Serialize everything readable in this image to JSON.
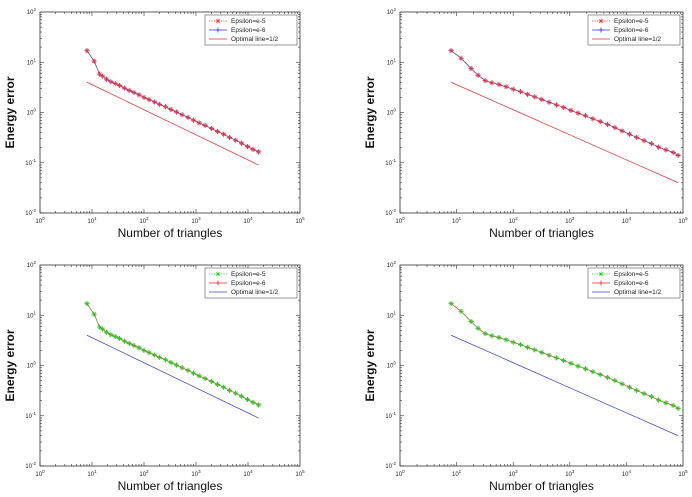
{
  "chart_data": [
    {
      "type": "line",
      "xscale": "log",
      "yscale": "log",
      "xlim": [
        1,
        100000
      ],
      "ylim": [
        0.01,
        100
      ],
      "xlabel": "Number of triangles",
      "ylabel": "Energy error",
      "xtick_labels": [
        {
          "base": "10",
          "exp": "0"
        },
        {
          "base": "10",
          "exp": "1"
        },
        {
          "base": "10",
          "exp": "2"
        },
        {
          "base": "10",
          "exp": "3"
        },
        {
          "base": "10",
          "exp": "4"
        },
        {
          "base": "10",
          "exp": "5"
        }
      ],
      "ytick_labels": [
        {
          "base": "10",
          "exp": "-2"
        },
        {
          "base": "10",
          "exp": "-1"
        },
        {
          "base": "10",
          "exp": "0"
        },
        {
          "base": "10",
          "exp": "1"
        },
        {
          "base": "10",
          "exp": "2"
        }
      ],
      "legend_position": "top-right",
      "series": [
        {
          "name": "Epsilon=e-5",
          "color": "#ee3333",
          "marker": "star",
          "line": "dotted",
          "x": [
            8,
            11,
            14,
            16,
            19,
            23,
            28,
            34,
            42,
            52,
            64,
            80,
            100,
            125,
            160,
            200,
            260,
            330,
            420,
            540,
            700,
            900,
            1150,
            1500,
            2000,
            2600,
            3400,
            4400,
            5800,
            7500,
            9800,
            12500,
            16000
          ],
          "y": [
            17,
            10.5,
            5.8,
            5.3,
            4.6,
            4.1,
            3.75,
            3.45,
            3.05,
            2.75,
            2.5,
            2.25,
            2.0,
            1.8,
            1.62,
            1.45,
            1.3,
            1.15,
            1.02,
            0.9,
            0.8,
            0.7,
            0.62,
            0.55,
            0.48,
            0.42,
            0.37,
            0.32,
            0.28,
            0.245,
            0.21,
            0.185,
            0.165
          ]
        },
        {
          "name": "Epsilon=e-6",
          "color": "#3333dd",
          "marker": "plus",
          "line": "solid",
          "x": [
            8,
            11,
            14,
            16,
            19,
            23,
            28,
            34,
            42,
            52,
            64,
            80,
            100,
            125,
            160,
            200,
            260,
            330,
            420,
            540,
            700,
            900,
            1150,
            1500,
            2000,
            2600,
            3400,
            4400,
            5800,
            7500,
            9800,
            12500,
            16000
          ],
          "y": [
            17,
            10.5,
            5.8,
            5.3,
            4.6,
            4.1,
            3.75,
            3.45,
            3.05,
            2.75,
            2.5,
            2.25,
            2.0,
            1.8,
            1.62,
            1.45,
            1.3,
            1.15,
            1.02,
            0.9,
            0.8,
            0.7,
            0.62,
            0.55,
            0.48,
            0.42,
            0.37,
            0.32,
            0.28,
            0.245,
            0.21,
            0.185,
            0.165
          ]
        },
        {
          "name": "Optimal line=1/2",
          "color": "#dd3333",
          "marker": "none",
          "line": "solid",
          "x": [
            8,
            16000
          ],
          "y": [
            4.0,
            0.09
          ]
        }
      ]
    },
    {
      "type": "line",
      "xscale": "log",
      "yscale": "log",
      "xlim": [
        1,
        100000
      ],
      "ylim": [
        0.01,
        100
      ],
      "xlabel": "Number of triangles",
      "ylabel": "Energy error",
      "xtick_labels": [
        {
          "base": "10",
          "exp": "0"
        },
        {
          "base": "10",
          "exp": "1"
        },
        {
          "base": "10",
          "exp": "2"
        },
        {
          "base": "10",
          "exp": "3"
        },
        {
          "base": "10",
          "exp": "4"
        },
        {
          "base": "10",
          "exp": "5"
        }
      ],
      "ytick_labels": [
        {
          "base": "10",
          "exp": "-2"
        },
        {
          "base": "10",
          "exp": "-1"
        },
        {
          "base": "10",
          "exp": "0"
        },
        {
          "base": "10",
          "exp": "1"
        },
        {
          "base": "10",
          "exp": "2"
        }
      ],
      "legend_position": "top-right",
      "series": [
        {
          "name": "Epsilon=e-5",
          "color": "#ee3333",
          "marker": "star",
          "line": "dotted",
          "x": [
            8,
            12,
            18,
            24,
            32,
            42,
            56,
            75,
            100,
            135,
            180,
            240,
            320,
            430,
            580,
            780,
            1050,
            1400,
            1900,
            2550,
            3450,
            4650,
            6250,
            8400,
            11300,
            15200,
            20500,
            27600,
            37000,
            50000,
            67000,
            82000
          ],
          "y": [
            17,
            12,
            7.5,
            5.5,
            4.3,
            3.9,
            3.6,
            3.25,
            2.9,
            2.6,
            2.3,
            2.05,
            1.82,
            1.6,
            1.42,
            1.26,
            1.1,
            0.97,
            0.86,
            0.75,
            0.66,
            0.58,
            0.5,
            0.43,
            0.37,
            0.32,
            0.275,
            0.24,
            0.205,
            0.18,
            0.16,
            0.14
          ]
        },
        {
          "name": "Epsilon=e-6",
          "color": "#3333dd",
          "marker": "plus",
          "line": "solid",
          "x": [
            8,
            12,
            18,
            24,
            32,
            42,
            56,
            75,
            100,
            135,
            180,
            240,
            320,
            430,
            580,
            780,
            1050,
            1400,
            1900,
            2550,
            3450,
            4650,
            6250,
            8400,
            11300,
            15200,
            20500,
            27600,
            37000,
            50000,
            67000,
            82000
          ],
          "y": [
            17,
            12,
            7.5,
            5.5,
            4.3,
            3.9,
            3.6,
            3.25,
            2.9,
            2.6,
            2.3,
            2.05,
            1.82,
            1.6,
            1.42,
            1.26,
            1.1,
            0.97,
            0.86,
            0.75,
            0.66,
            0.58,
            0.5,
            0.43,
            0.37,
            0.32,
            0.275,
            0.24,
            0.205,
            0.18,
            0.16,
            0.14
          ]
        },
        {
          "name": "Optimal line=1/2",
          "color": "#dd3333",
          "marker": "none",
          "line": "solid",
          "x": [
            8,
            82000
          ],
          "y": [
            4.0,
            0.04
          ]
        }
      ]
    },
    {
      "type": "line",
      "xscale": "log",
      "yscale": "log",
      "xlim": [
        1,
        100000
      ],
      "ylim": [
        0.01,
        100
      ],
      "xlabel": "Number of triangles",
      "ylabel": "Energy error",
      "xtick_labels": [
        {
          "base": "10",
          "exp": "0"
        },
        {
          "base": "10",
          "exp": "1"
        },
        {
          "base": "10",
          "exp": "2"
        },
        {
          "base": "10",
          "exp": "3"
        },
        {
          "base": "10",
          "exp": "4"
        },
        {
          "base": "10",
          "exp": "5"
        }
      ],
      "ytick_labels": [
        {
          "base": "10",
          "exp": "-2"
        },
        {
          "base": "10",
          "exp": "-1"
        },
        {
          "base": "10",
          "exp": "0"
        },
        {
          "base": "10",
          "exp": "1"
        },
        {
          "base": "10",
          "exp": "2"
        }
      ],
      "legend_position": "top-right",
      "series": [
        {
          "name": "Epsilon=e-5",
          "color": "#22cc22",
          "marker": "star",
          "line": "dotted",
          "x": [
            8,
            11,
            14,
            16,
            19,
            23,
            28,
            34,
            42,
            52,
            64,
            80,
            100,
            125,
            160,
            200,
            260,
            330,
            420,
            540,
            700,
            900,
            1150,
            1500,
            2000,
            2600,
            3400,
            4400,
            5800,
            7500,
            9800,
            12500,
            16000
          ],
          "y": [
            17,
            10.5,
            5.8,
            5.3,
            4.6,
            4.1,
            3.75,
            3.45,
            3.05,
            2.75,
            2.5,
            2.25,
            2.0,
            1.8,
            1.62,
            1.45,
            1.3,
            1.15,
            1.02,
            0.9,
            0.8,
            0.7,
            0.62,
            0.55,
            0.48,
            0.42,
            0.37,
            0.32,
            0.28,
            0.245,
            0.21,
            0.185,
            0.165
          ]
        },
        {
          "name": "Epsilon=e-6",
          "color": "#dd3333",
          "marker": "plus",
          "line": "solid",
          "x": [
            8,
            11,
            14,
            16,
            19,
            23,
            28,
            34,
            42,
            52,
            64,
            80,
            100,
            125,
            160,
            200,
            260,
            330,
            420,
            540,
            700,
            900,
            1150,
            1500,
            2000,
            2600,
            3400,
            4400,
            5800,
            7500,
            9800,
            12500,
            16000
          ],
          "y": [
            17,
            10.5,
            5.8,
            5.3,
            4.6,
            4.1,
            3.75,
            3.45,
            3.05,
            2.75,
            2.5,
            2.25,
            2.0,
            1.8,
            1.62,
            1.45,
            1.3,
            1.15,
            1.02,
            0.9,
            0.8,
            0.7,
            0.62,
            0.55,
            0.48,
            0.42,
            0.37,
            0.32,
            0.28,
            0.245,
            0.21,
            0.185,
            0.165
          ]
        },
        {
          "name": "Optimal line=1/2",
          "color": "#3344cc",
          "marker": "none",
          "line": "solid",
          "x": [
            8,
            16000
          ],
          "y": [
            4.0,
            0.09
          ]
        }
      ]
    },
    {
      "type": "line",
      "xscale": "log",
      "yscale": "log",
      "xlim": [
        1,
        100000
      ],
      "ylim": [
        0.01,
        100
      ],
      "xlabel": "Number of triangles",
      "ylabel": "Energy error",
      "xtick_labels": [
        {
          "base": "10",
          "exp": "0"
        },
        {
          "base": "10",
          "exp": "1"
        },
        {
          "base": "10",
          "exp": "2"
        },
        {
          "base": "10",
          "exp": "3"
        },
        {
          "base": "10",
          "exp": "4"
        },
        {
          "base": "10",
          "exp": "5"
        }
      ],
      "ytick_labels": [
        {
          "base": "10",
          "exp": "-2"
        },
        {
          "base": "10",
          "exp": "-1"
        },
        {
          "base": "10",
          "exp": "0"
        },
        {
          "base": "10",
          "exp": "1"
        },
        {
          "base": "10",
          "exp": "2"
        }
      ],
      "legend_position": "top-right",
      "series": [
        {
          "name": "Epsilon=e-5",
          "color": "#22cc22",
          "marker": "star",
          "line": "dotted",
          "x": [
            8,
            12,
            18,
            24,
            32,
            42,
            56,
            75,
            100,
            135,
            180,
            240,
            320,
            430,
            580,
            780,
            1050,
            1400,
            1900,
            2550,
            3450,
            4650,
            6250,
            8400,
            11300,
            15200,
            20500,
            27600,
            37000,
            50000,
            67000,
            82000
          ],
          "y": [
            17,
            12,
            7.5,
            5.5,
            4.3,
            3.9,
            3.6,
            3.25,
            2.9,
            2.6,
            2.3,
            2.05,
            1.82,
            1.6,
            1.42,
            1.26,
            1.1,
            0.97,
            0.86,
            0.75,
            0.66,
            0.58,
            0.5,
            0.43,
            0.37,
            0.32,
            0.275,
            0.24,
            0.205,
            0.18,
            0.16,
            0.14
          ]
        },
        {
          "name": "Epsilon=e-6",
          "color": "#dd3333",
          "marker": "plus",
          "line": "solid",
          "x": [
            8,
            12,
            18,
            24,
            32,
            42,
            56,
            75,
            100,
            135,
            180,
            240,
            320,
            430,
            580,
            780,
            1050,
            1400,
            1900,
            2550,
            3450,
            4650,
            6250,
            8400,
            11300,
            15200,
            20500,
            27600,
            37000,
            50000,
            67000,
            82000
          ],
          "y": [
            17,
            12,
            7.5,
            5.5,
            4.3,
            3.9,
            3.6,
            3.25,
            2.9,
            2.6,
            2.3,
            2.05,
            1.82,
            1.6,
            1.42,
            1.26,
            1.1,
            0.97,
            0.86,
            0.75,
            0.66,
            0.58,
            0.5,
            0.43,
            0.37,
            0.32,
            0.275,
            0.24,
            0.205,
            0.18,
            0.16,
            0.14
          ]
        },
        {
          "name": "Optimal line=1/2",
          "color": "#3344cc",
          "marker": "none",
          "line": "solid",
          "x": [
            8,
            82000
          ],
          "y": [
            4.0,
            0.04
          ]
        }
      ]
    }
  ]
}
